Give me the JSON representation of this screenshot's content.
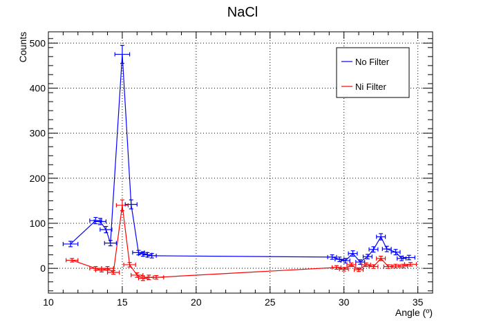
{
  "chart_data": {
    "type": "line",
    "title": "NaCl",
    "xlabel": "Angle (º)",
    "ylabel": "Counts",
    "xlim": [
      10,
      36
    ],
    "ylim": [
      -55,
      525
    ],
    "xticks": [
      10,
      15,
      20,
      25,
      30,
      35
    ],
    "yticks": [
      0,
      100,
      200,
      300,
      400,
      500
    ],
    "grid": true,
    "legend_position": "top-right",
    "series": [
      {
        "name": "No Filter",
        "color": "#0000ff",
        "points": [
          {
            "x": 11.5,
            "y": 54,
            "xerr": 0.5,
            "yerr": 6
          },
          {
            "x": 13.2,
            "y": 106,
            "xerr": 0.4,
            "yerr": 7
          },
          {
            "x": 13.5,
            "y": 104,
            "xerr": 0.4,
            "yerr": 7
          },
          {
            "x": 13.9,
            "y": 86,
            "xerr": 0.4,
            "yerr": 7
          },
          {
            "x": 14.2,
            "y": 56,
            "xerr": 0.4,
            "yerr": 6
          },
          {
            "x": 15.0,
            "y": 475,
            "xerr": 0.5,
            "yerr": 20
          },
          {
            "x": 15.6,
            "y": 142,
            "xerr": 0.4,
            "yerr": 10
          },
          {
            "x": 16.1,
            "y": 35,
            "xerr": 0.4,
            "yerr": 5
          },
          {
            "x": 16.4,
            "y": 32,
            "xerr": 0.3,
            "yerr": 5
          },
          {
            "x": 16.7,
            "y": 30,
            "xerr": 0.3,
            "yerr": 5
          },
          {
            "x": 17.0,
            "y": 28,
            "xerr": 0.3,
            "yerr": 5
          },
          {
            "x": 29.2,
            "y": 25,
            "xerr": 0.3,
            "yerr": 5
          },
          {
            "x": 29.7,
            "y": 20,
            "xerr": 0.3,
            "yerr": 5
          },
          {
            "x": 30.1,
            "y": 17,
            "xerr": 0.3,
            "yerr": 5
          },
          {
            "x": 30.6,
            "y": 33,
            "xerr": 0.3,
            "yerr": 6
          },
          {
            "x": 31.1,
            "y": 14,
            "xerr": 0.3,
            "yerr": 5
          },
          {
            "x": 31.6,
            "y": 26,
            "xerr": 0.3,
            "yerr": 5
          },
          {
            "x": 32.0,
            "y": 42,
            "xerr": 0.3,
            "yerr": 6
          },
          {
            "x": 32.5,
            "y": 70,
            "xerr": 0.3,
            "yerr": 7
          },
          {
            "x": 32.9,
            "y": 43,
            "xerr": 0.3,
            "yerr": 6
          },
          {
            "x": 33.5,
            "y": 36,
            "xerr": 0.3,
            "yerr": 6
          },
          {
            "x": 33.9,
            "y": 22,
            "xerr": 0.3,
            "yerr": 5
          },
          {
            "x": 34.4,
            "y": 24,
            "xerr": 0.4,
            "yerr": 5
          }
        ]
      },
      {
        "name": "Ni Filter",
        "color": "#ff0000",
        "points": [
          {
            "x": 11.6,
            "y": 18,
            "xerr": 0.4,
            "yerr": 4
          },
          {
            "x": 13.2,
            "y": 0,
            "xerr": 0.4,
            "yerr": 4
          },
          {
            "x": 13.6,
            "y": -4,
            "xerr": 0.4,
            "yerr": 4
          },
          {
            "x": 14.0,
            "y": 0,
            "xerr": 0.4,
            "yerr": 4
          },
          {
            "x": 14.4,
            "y": -9,
            "xerr": 0.4,
            "yerr": 4
          },
          {
            "x": 15.0,
            "y": 140,
            "xerr": 0.4,
            "yerr": 12
          },
          {
            "x": 15.5,
            "y": 8,
            "xerr": 0.4,
            "yerr": 5
          },
          {
            "x": 16.0,
            "y": -15,
            "xerr": 0.4,
            "yerr": 5
          },
          {
            "x": 16.4,
            "y": -22,
            "xerr": 0.3,
            "yerr": 5
          },
          {
            "x": 16.8,
            "y": -20,
            "xerr": 0.3,
            "yerr": 5
          },
          {
            "x": 17.3,
            "y": -20,
            "xerr": 0.5,
            "yerr": 4
          },
          {
            "x": 29.5,
            "y": 2,
            "xerr": 0.3,
            "yerr": 4
          },
          {
            "x": 30.0,
            "y": -2,
            "xerr": 0.3,
            "yerr": 4
          },
          {
            "x": 30.5,
            "y": 8,
            "xerr": 0.3,
            "yerr": 4
          },
          {
            "x": 31.0,
            "y": -3,
            "xerr": 0.3,
            "yerr": 4
          },
          {
            "x": 31.5,
            "y": 8,
            "xerr": 0.3,
            "yerr": 4
          },
          {
            "x": 32.0,
            "y": 4,
            "xerr": 0.3,
            "yerr": 4
          },
          {
            "x": 32.5,
            "y": 22,
            "xerr": 0.3,
            "yerr": 5
          },
          {
            "x": 33.0,
            "y": 4,
            "xerr": 0.3,
            "yerr": 4
          },
          {
            "x": 33.5,
            "y": 5,
            "xerr": 0.3,
            "yerr": 4
          },
          {
            "x": 34.0,
            "y": 5,
            "xerr": 0.3,
            "yerr": 4
          },
          {
            "x": 34.5,
            "y": 9,
            "xerr": 0.4,
            "yerr": 4
          }
        ]
      }
    ]
  }
}
